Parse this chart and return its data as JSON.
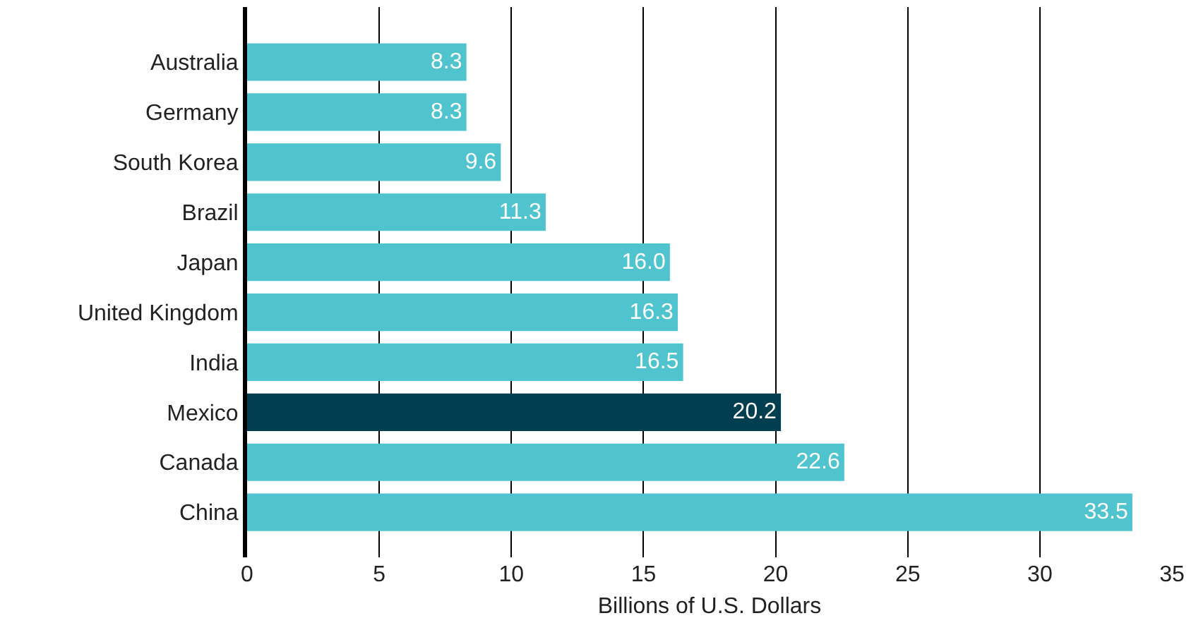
{
  "chart_data": {
    "type": "bar",
    "orientation": "horizontal",
    "xlabel": "Billions of U.S. Dollars",
    "categories": [
      "Australia",
      "Germany",
      "South Korea",
      "Brazil",
      "Japan",
      "United Kingdom",
      "India",
      "Mexico",
      "Canada",
      "China"
    ],
    "values": [
      8.3,
      8.3,
      9.6,
      11.3,
      16.0,
      16.3,
      16.5,
      20.2,
      22.6,
      33.5
    ],
    "value_labels": [
      "8.3",
      "8.3",
      "9.6",
      "11.3",
      "16.0",
      "16.3",
      "16.5",
      "20.2",
      "22.6",
      "33.5"
    ],
    "colors": [
      "#4fc4cf",
      "#4fc4cf",
      "#4fc4cf",
      "#4fc4cf",
      "#4fc4cf",
      "#4fc4cf",
      "#4fc4cf",
      "#003f4f",
      "#4fc4cf",
      "#4fc4cf"
    ],
    "xlim": [
      0,
      35
    ],
    "xticks": [
      0,
      5,
      10,
      15,
      20,
      25,
      30,
      35
    ],
    "grid": "x",
    "legend": false
  }
}
